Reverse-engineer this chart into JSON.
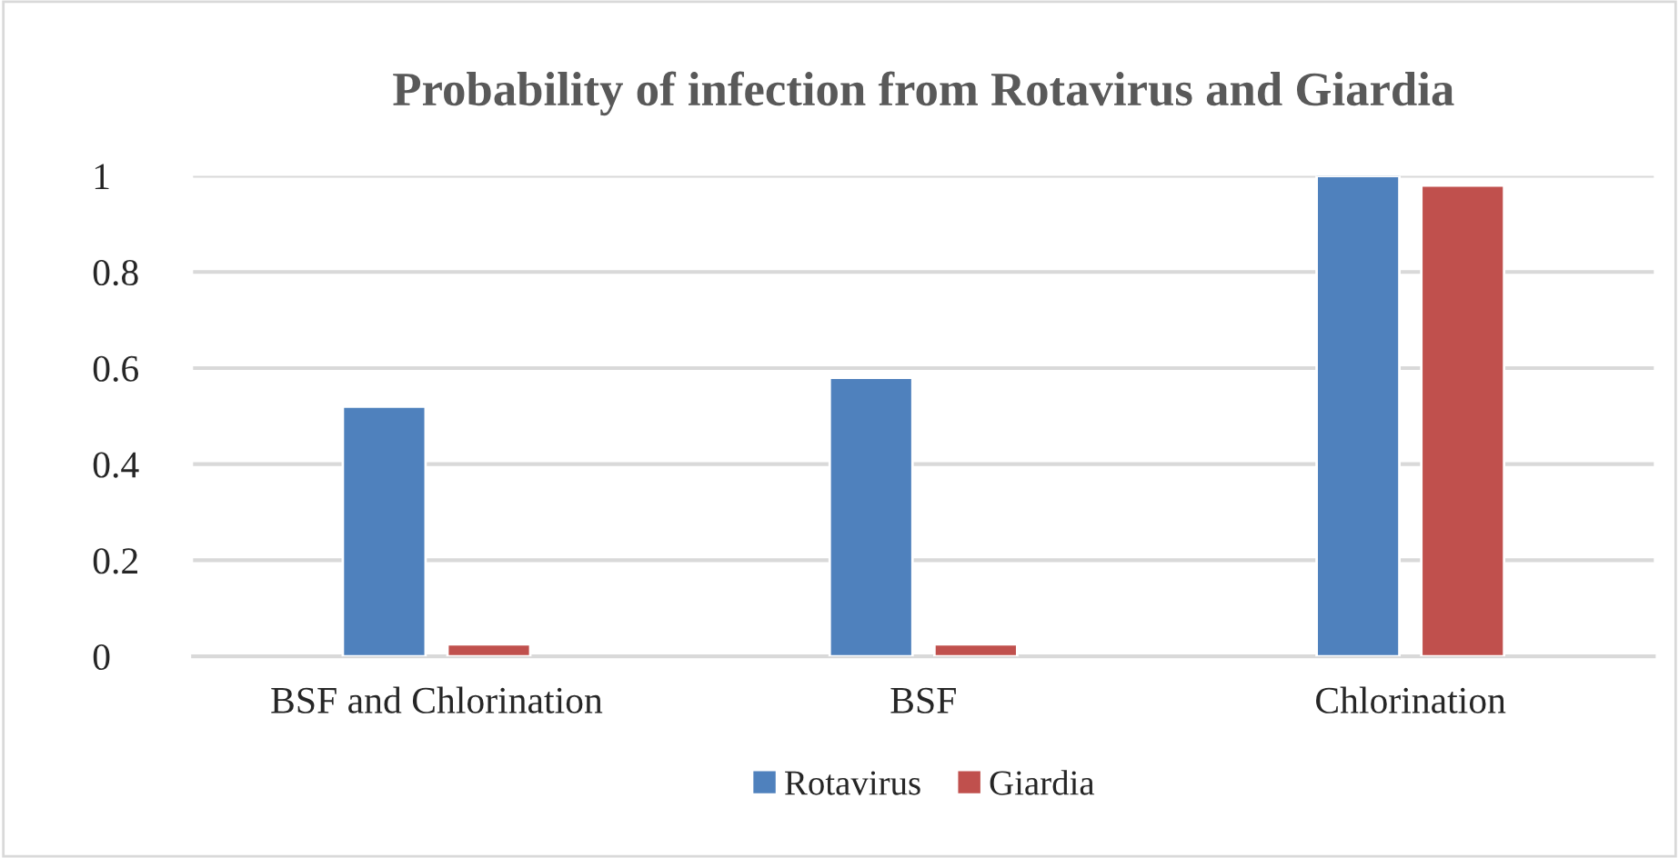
{
  "chart_data": {
    "type": "bar",
    "title": "Probability of infection from Rotavirus and Giardia",
    "categories": [
      "BSF and Chlorination",
      "BSF",
      "Chlorination"
    ],
    "series": [
      {
        "name": "Rotavirus",
        "color": "#4f81bd",
        "values": [
          0.52,
          0.58,
          1.0
        ]
      },
      {
        "name": "Giardia",
        "color": "#c0504d",
        "values": [
          0.025,
          0.025,
          0.98
        ]
      }
    ],
    "ylim": [
      0,
      1
    ],
    "yticks": [
      0,
      0.2,
      0.4,
      0.6,
      0.8,
      1
    ],
    "grid": "y",
    "legend": "bottom"
  }
}
